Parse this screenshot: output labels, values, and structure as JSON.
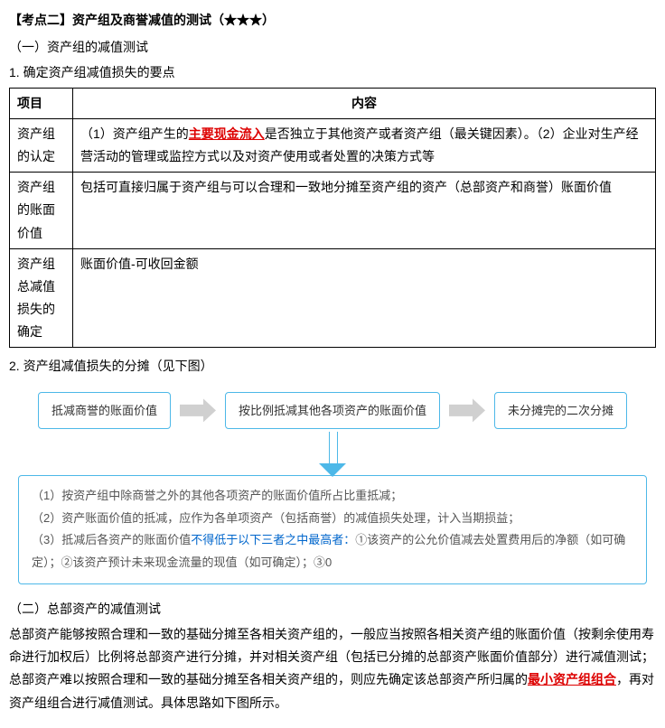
{
  "heading": {
    "main": "【考点二】资产组及商誉减值的测试（★★★）",
    "sub1": "（一）资产组的减值测试",
    "sub1_1": "1. 确定资产组减值损失的要点",
    "sub2_1": "2. 资产组减值损失的分摊（见下图）",
    "sub2": "（二）总部资产的减值测试"
  },
  "table1": {
    "header": {
      "c1": "项目",
      "c2": "内容"
    },
    "rows": [
      {
        "k": "资产组的认定",
        "pre": "（1）资产组产生的",
        "hl": "主要现金流入",
        "post": "是否独立于其他资产或者资产组（最关键因素）。（2）企业对生产经营活动的管理或监控方式以及对资产使用或者处置的决策方式等"
      },
      {
        "k": "资产组的账面价值",
        "v": "包括可直接归属于资产组与可以合理和一致地分摊至资产组的资产（总部资产和商誉）账面价值"
      },
      {
        "k": "资产组总减值损失的确定",
        "v": "账面价值-可收回金额"
      }
    ]
  },
  "flow": {
    "box1": "抵减商誉的账面价值",
    "box2": "按比例抵减其他各项资产的账面价值",
    "box3": "未分摊完的二次分摊"
  },
  "detail": {
    "l1": "（1）按资产组中除商誉之外的其他各项资产的账面价值所占比重抵减；",
    "l2": "（2）资产账面价值的抵减，应作为各单项资产（包括商誉）的减值损失处理，计入当期损益；",
    "l3_pre": "（3）抵减后各资产的账面价值",
    "l3_blue": "不得低于以下三者之中最高者：",
    "l3_post": "①该资产的公允价值减去处置费用后的净额（如可确定）；②该资产预计未来现金流量的现值（如可确定）；③0"
  },
  "para2": {
    "t1": "总部资产能够按照合理和一致的基础分摊至各相关资产组的，一般应当按照各相关资产组的账面价值（按剩余使用寿命进行加权后）比例将总部资产进行分摊，并对相关资产组（包括已分摊的总部资产账面价值部分）进行减值测试；总部资产难以按照合理和一致的基础分摊至各相关资产组的，则应先确定该总部资产所归属的",
    "hl": "最小资产组组合",
    "t2": "，再对资产组组合进行减值测试。具体思路如下图所示。"
  },
  "colors": {
    "box_border": "#4db8e8",
    "arrow_gray": "#d0d0d0",
    "red": "#d00",
    "blue": "#06c"
  }
}
